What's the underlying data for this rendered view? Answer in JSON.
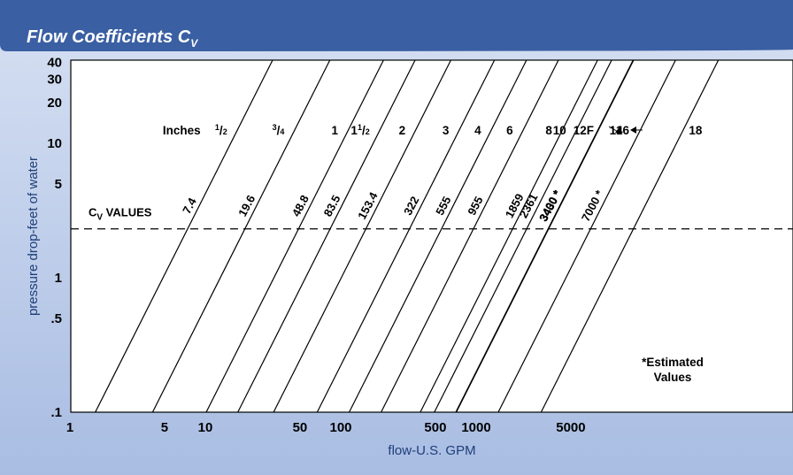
{
  "chart_data": {
    "type": "line",
    "title": "Flow Coefficients C",
    "title_subscript": "V",
    "xlabel": "flow-U.S. GPM",
    "ylabel": "pressure drop-feet of water",
    "x_scale": "log",
    "y_scale": "log",
    "xlim": [
      1,
      20000
    ],
    "ylim": [
      0.1,
      40
    ],
    "x_ticks": [
      {
        "value": 1,
        "label": "1"
      },
      {
        "value": 5,
        "label": "5"
      },
      {
        "value": 10,
        "label": "10"
      },
      {
        "value": 50,
        "label": "50"
      },
      {
        "value": 100,
        "label": "100"
      },
      {
        "value": 500,
        "label": "500"
      },
      {
        "value": 1000,
        "label": "1000"
      },
      {
        "value": 5000,
        "label": "5000"
      }
    ],
    "y_ticks": [
      {
        "value": 0.1,
        "label": ".1"
      },
      {
        "value": 0.5,
        "label": ".5"
      },
      {
        "value": 1,
        "label": "1"
      },
      {
        "value": 5,
        "label": "5"
      },
      {
        "value": 10,
        "label": "10"
      },
      {
        "value": 20,
        "label": "20"
      },
      {
        "value": 30,
        "label": "30"
      },
      {
        "value": 40,
        "label": "40"
      }
    ],
    "reference_line": {
      "y": 2.31,
      "style": "dashed",
      "label": "C",
      "label_subscript": "V",
      "label_suffix": " VALUES"
    },
    "size_prefix": "Inches",
    "series": [
      {
        "cv": 7.4,
        "cv_label": "7.4",
        "size_num": "1",
        "size_den": "2"
      },
      {
        "cv": 19.6,
        "cv_label": "19.6",
        "size_num": "3",
        "size_den": "4"
      },
      {
        "cv": 48.8,
        "cv_label": "48.8",
        "size": "1"
      },
      {
        "cv": 83.5,
        "cv_label": "83.5",
        "size_whole": "1",
        "size_num": "1",
        "size_den": "2"
      },
      {
        "cv": 153.4,
        "cv_label": "153.4",
        "size": "2"
      },
      {
        "cv": 322,
        "cv_label": "322",
        "size": "3"
      },
      {
        "cv": 555,
        "cv_label": "555",
        "size": "4"
      },
      {
        "cv": 955,
        "cv_label": "955",
        "size": "6"
      },
      {
        "cv": 1859,
        "cv_label": "1859",
        "size": "8"
      },
      {
        "cv": 2361,
        "cv_label": "2361",
        "size": "10"
      },
      {
        "cv": 3400,
        "cv_label": "3400 *",
        "size": "12F"
      },
      {
        "cv": 3430,
        "cv_label": "3430 *",
        "size": "14"
      },
      {
        "cv": 7000,
        "cv_label": "7000 *",
        "size": "16"
      },
      {
        "cv": null,
        "cv_label": "",
        "size": "18"
      }
    ],
    "note": [
      "*Estimated",
      "Values"
    ],
    "colors": {
      "title_bar": "#3a5fa3",
      "frame": "#b9c8e6",
      "plot_bg": "#ffffff",
      "axis_title": "#1f3f78",
      "lines": "#000000"
    }
  }
}
